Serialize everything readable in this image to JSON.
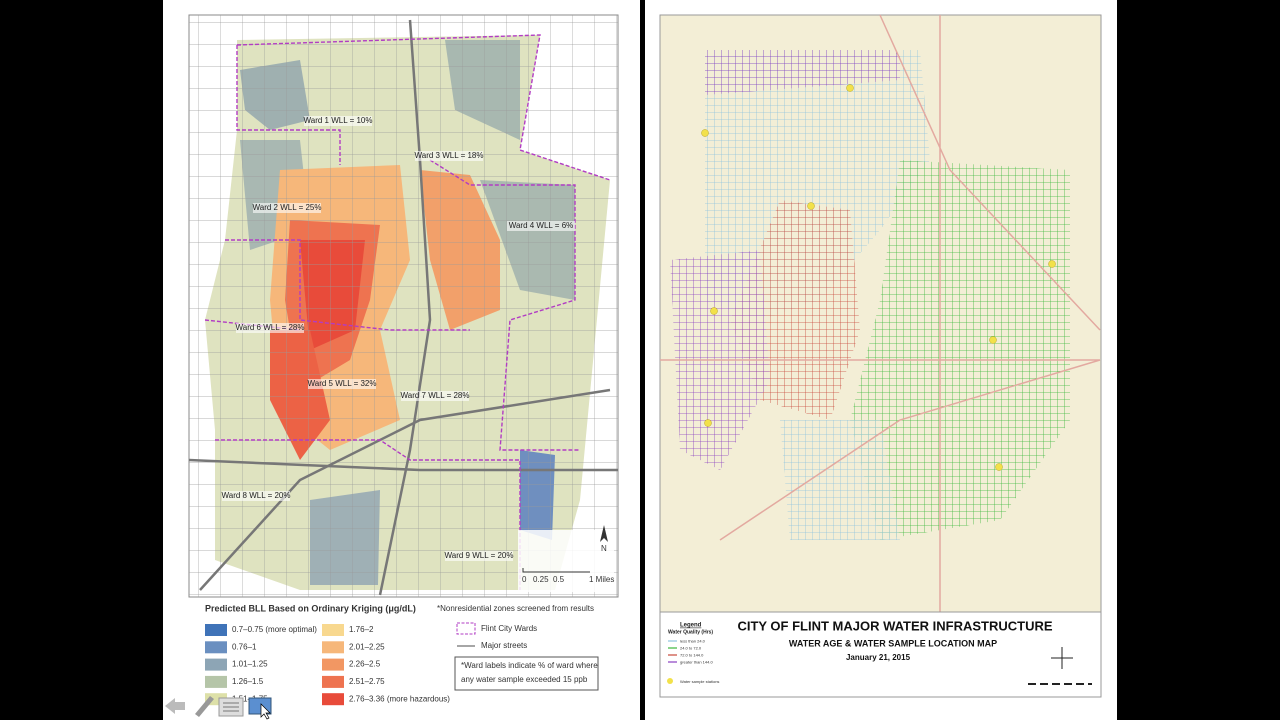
{
  "left_map": {
    "ward_labels": [
      "Ward 1 WLL = 10%",
      "Ward 3 WLL = 18%",
      "Ward 2 WLL = 25%",
      "Ward 4 WLL = 6%",
      "Ward 6 WLL = 28%",
      "Ward 5 WLL = 32%",
      "Ward 7 WLL = 28%",
      "Ward 8 WLL = 20%",
      "Ward 9 WLL = 20%"
    ],
    "scale": [
      "0",
      "0.25",
      "0.5",
      "1 Miles"
    ],
    "north": "N",
    "legend": {
      "title": "Predicted BLL Based on Ordinary Kriging (μg/dL)",
      "note": "*Nonresidential zones screened from results",
      "items": [
        "0.7–0.75 (more optimal)",
        "0.76–1",
        "1.01–1.25",
        "1.26–1.5",
        "1.51–1.75",
        "1.76–2",
        "2.01–2.25",
        "2.26–2.5",
        "2.51–2.75",
        "2.76–3.36 (more hazardous)"
      ],
      "symbols": [
        "Flint City Wards",
        "Major streets"
      ],
      "ward_note": [
        "*Ward labels indicate % of ward where",
        "any water sample exceeded 15 ppb"
      ]
    }
  },
  "right_map": {
    "title": "CITY OF FLINT MAJOR WATER INFRASTRUCTURE",
    "subtitle": "WATER AGE & WATER SAMPLE LOCATION MAP",
    "date": "January 21, 2015",
    "legend": {
      "title": "Legend",
      "subtitle": "Water Quality (Hrs)",
      "items": [
        "less than 24.0",
        "24.0 to 72.0",
        "72.0 to 144.0",
        "greater than 144.0"
      ],
      "stations": "Water sample stations"
    }
  }
}
